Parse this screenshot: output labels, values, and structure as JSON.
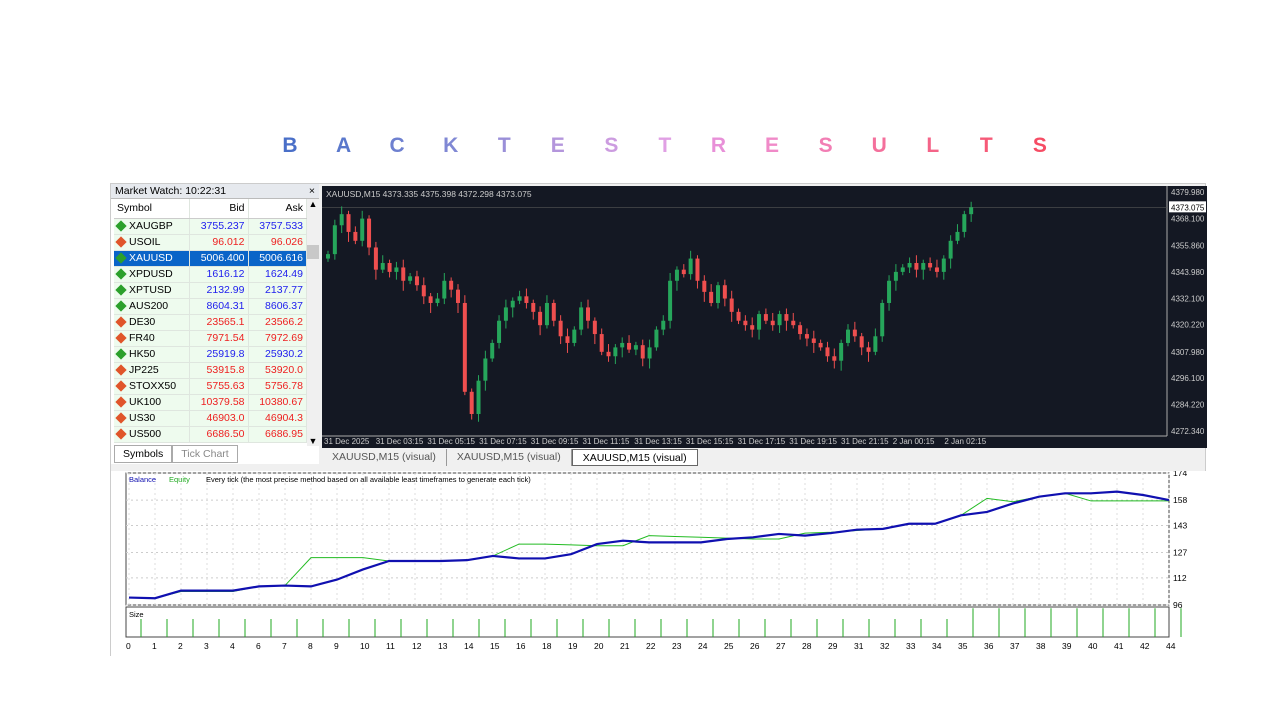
{
  "title": {
    "letters": [
      "B",
      "A",
      "C",
      "K",
      "T",
      "E",
      "S",
      "T",
      "R",
      "E",
      "S",
      "U",
      "L",
      "T",
      "S"
    ],
    "colors": [
      "#4a6fc8",
      "#5a78cc",
      "#6e80d0",
      "#8088d4",
      "#9a8fd8",
      "#b496dc",
      "#cc9ce0",
      "#e0a0e4",
      "#e890d8",
      "#f08ac8",
      "#f27eb4",
      "#f4709c",
      "#f46488",
      "#f65a78",
      "#f64c64"
    ]
  },
  "market_watch": {
    "header": "Market Watch: 10:22:31",
    "close": "×",
    "columns": [
      "Symbol",
      "Bid",
      "Ask"
    ],
    "rows": [
      {
        "symbol": "XAUGBP",
        "bid": "3755.237",
        "ask": "3757.533",
        "dir": "up"
      },
      {
        "symbol": "USOIL",
        "bid": "96.012",
        "ask": "96.026",
        "dir": "down"
      },
      {
        "symbol": "XAUUSD",
        "bid": "5006.400",
        "ask": "5006.616",
        "dir": "up",
        "selected": true
      },
      {
        "symbol": "XPDUSD",
        "bid": "1616.12",
        "ask": "1624.49",
        "dir": "up"
      },
      {
        "symbol": "XPTUSD",
        "bid": "2132.99",
        "ask": "2137.77",
        "dir": "up"
      },
      {
        "symbol": "AUS200",
        "bid": "8604.31",
        "ask": "8606.37",
        "dir": "up"
      },
      {
        "symbol": "DE30",
        "bid": "23565.1",
        "ask": "23566.2",
        "dir": "down"
      },
      {
        "symbol": "FR40",
        "bid": "7971.54",
        "ask": "7972.69",
        "dir": "down"
      },
      {
        "symbol": "HK50",
        "bid": "25919.8",
        "ask": "25930.2",
        "dir": "up"
      },
      {
        "symbol": "JP225",
        "bid": "53915.8",
        "ask": "53920.0",
        "dir": "down"
      },
      {
        "symbol": "STOXX50",
        "bid": "5755.63",
        "ask": "5756.78",
        "dir": "down"
      },
      {
        "symbol": "UK100",
        "bid": "10379.58",
        "ask": "10380.67",
        "dir": "down"
      },
      {
        "symbol": "US30",
        "bid": "46903.0",
        "ask": "46904.3",
        "dir": "down"
      },
      {
        "symbol": "US500",
        "bid": "6686.50",
        "ask": "6686.95",
        "dir": "down"
      }
    ],
    "tabs": [
      "Symbols",
      "Tick Chart"
    ]
  },
  "chart": {
    "header": "XAUUSD,M15  4373.335 4375.398 4372.298 4373.075",
    "current_price": "4373.075",
    "price_ticks": [
      "4379.980",
      "4368.100",
      "4355.860",
      "4343.980",
      "4332.100",
      "4320.220",
      "4307.980",
      "4296.100",
      "4284.220",
      "4272.340"
    ],
    "time_ticks": [
      "31 Dec 2025",
      "31 Dec 03:15",
      "31 Dec 05:15",
      "31 Dec 07:15",
      "31 Dec 09:15",
      "31 Dec 11:15",
      "31 Dec 13:15",
      "31 Dec 15:15",
      "31 Dec 17:15",
      "31 Dec 19:15",
      "31 Dec 21:15",
      "2 Jan 00:15",
      "2 Jan 02:15"
    ],
    "tabs": [
      "XAUUSD,M15 (visual)",
      "XAUUSD,M15 (visual)",
      "XAUUSD,M15 (visual)"
    ],
    "colors": {
      "bg": "#141823",
      "bull": "#26a65b",
      "bear": "#ef4f4f"
    }
  },
  "chart_data": [
    {
      "type": "candlestick",
      "symbol": "XAUUSD",
      "timeframe": "M15",
      "ylim": [
        4272.34,
        4379.98
      ],
      "closes": [
        4352,
        4365,
        4370,
        4362,
        4358,
        4368,
        4355,
        4345,
        4348,
        4344,
        4346,
        4340,
        4342,
        4338,
        4333,
        4330,
        4332,
        4340,
        4336,
        4330,
        4290,
        4280,
        4295,
        4305,
        4312,
        4322,
        4328,
        4331,
        4333,
        4330,
        4326,
        4320,
        4330,
        4322,
        4315,
        4312,
        4318,
        4328,
        4322,
        4316,
        4308,
        4306,
        4310,
        4312,
        4309,
        4311,
        4305,
        4310,
        4318,
        4322,
        4340,
        4345,
        4343,
        4350,
        4340,
        4335,
        4330,
        4338,
        4332,
        4326,
        4322,
        4320,
        4318,
        4325,
        4322,
        4320,
        4325,
        4322,
        4320,
        4316,
        4314,
        4312,
        4310,
        4306,
        4304,
        4312,
        4318,
        4315,
        4310,
        4308,
        4315,
        4330,
        4340,
        4344,
        4346,
        4348,
        4345,
        4348,
        4346,
        4344,
        4350,
        4358,
        4362,
        4370,
        4373.075
      ]
    },
    {
      "type": "line",
      "legend": [
        "Balance",
        "Equity"
      ],
      "note": "Every tick (the most precise method based on all available least timeframes to generate each tick)",
      "ylim": [
        96,
        174
      ],
      "y_ticks": [
        "174",
        "158",
        "143",
        "127",
        "112",
        "96"
      ],
      "x": [
        "0",
        "1",
        "2",
        "3",
        "4",
        "6",
        "7",
        "8",
        "9",
        "10",
        "11",
        "12",
        "13",
        "14",
        "15",
        "16",
        "18",
        "19",
        "20",
        "21",
        "22",
        "23",
        "24",
        "25",
        "26",
        "27",
        "28",
        "29",
        "31",
        "32",
        "33",
        "34",
        "35",
        "36",
        "37",
        "38",
        "39",
        "40",
        "41",
        "42",
        "44"
      ],
      "series": [
        {
          "name": "Balance",
          "color": "#1010b0",
          "values": [
            100.4,
            100,
            104.5,
            104.5,
            104.5,
            107,
            107.5,
            107,
            111,
            117,
            122,
            122,
            122,
            122.5,
            125,
            123.5,
            123.5,
            126,
            132,
            134,
            133,
            133,
            133,
            135,
            136,
            138,
            137,
            138.5,
            140.5,
            141,
            144,
            144,
            149,
            151,
            156,
            160,
            162,
            162,
            163,
            161,
            158
          ]
        },
        {
          "name": "Equity",
          "color": "#22bb22",
          "values": [
            100.4,
            100,
            104,
            104,
            104,
            107,
            107.5,
            124,
            124,
            124,
            122,
            122,
            122,
            122.5,
            125,
            132,
            132,
            131.5,
            131,
            131,
            137,
            136.5,
            136,
            135.5,
            135,
            135,
            138.5,
            139,
            140,
            141,
            144,
            144,
            149,
            159,
            157,
            160,
            162,
            157.5,
            157.5,
            157.5,
            157.5
          ]
        }
      ],
      "size_label": "Size",
      "sizes": [
        1,
        1,
        1,
        1,
        1,
        1,
        1,
        1,
        1,
        1,
        1,
        1,
        1,
        1,
        1,
        1,
        1,
        1,
        1,
        1,
        1,
        1,
        1,
        1,
        1,
        1,
        1,
        1,
        1,
        1,
        1,
        1,
        1.6,
        1.6,
        1.6,
        1.6,
        1.6,
        1.6,
        1.6,
        1.6,
        1.6
      ]
    }
  ]
}
